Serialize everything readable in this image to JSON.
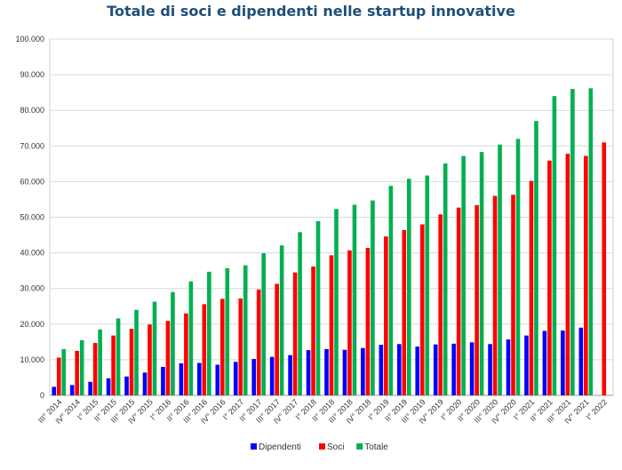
{
  "chart_data": {
    "type": "bar",
    "title": "Totale di soci e dipendenti nelle startup innovative",
    "xlabel": "",
    "ylabel": "",
    "ylim": [
      0,
      100000
    ],
    "y_ticks": [
      "0",
      "10.000",
      "20.000",
      "30.000",
      "40.000",
      "50.000",
      "60.000",
      "70.000",
      "80.000",
      "90.000",
      "100.000"
    ],
    "grid": true,
    "legend_position": "bottom",
    "categories": [
      "III° 2014",
      "IV° 2014",
      "I° 2015",
      "II° 2015",
      "III° 2015",
      "IV° 2015",
      "I° 2016",
      "II° 2016",
      "III° 2016",
      "IV° 2016",
      "I° 2017",
      "II° 2017",
      "III° 2017",
      "IV° 2017",
      "I° 2018",
      "II° 2018",
      "III° 2018",
      "IV° 2018",
      "I° 2019",
      "II° 2019",
      "III° 2019",
      "IV° 2019",
      "I° 2020",
      "II° 2020",
      "III° 2020",
      "IV° 2020",
      "I° 2021",
      "II° 2021",
      "III° 2021",
      "IV° 2021",
      "I° 2022"
    ],
    "series": [
      {
        "name": "Dipendenti",
        "color": "#0000ff",
        "values": [
          2400,
          2900,
          3800,
          4800,
          5300,
          6400,
          8000,
          9000,
          9100,
          8600,
          9400,
          10200,
          10800,
          11300,
          12700,
          13000,
          12800,
          13300,
          14200,
          14400,
          13700,
          14300,
          14500,
          14900,
          14400,
          15700,
          16800,
          18100,
          18200,
          19000,
          null
        ]
      },
      {
        "name": "Soci",
        "color": "#ff0000",
        "values": [
          10600,
          12500,
          14700,
          16800,
          18700,
          19900,
          20900,
          23000,
          25600,
          27100,
          27200,
          29700,
          31300,
          34500,
          36200,
          39300,
          40700,
          41400,
          44600,
          46400,
          48000,
          50800,
          52700,
          53400,
          56000,
          56300,
          60200,
          65900,
          67800,
          67200,
          71000
        ]
      },
      {
        "name": "Totale",
        "color": "#00b050",
        "values": [
          13000,
          15500,
          18500,
          21600,
          24000,
          26300,
          29000,
          32000,
          34700,
          35700,
          36500,
          39900,
          42100,
          45800,
          48900,
          52300,
          53500,
          54700,
          58800,
          60800,
          61700,
          65100,
          67200,
          68300,
          70400,
          72000,
          77000,
          84000,
          86000,
          86200,
          null
        ]
      }
    ]
  }
}
